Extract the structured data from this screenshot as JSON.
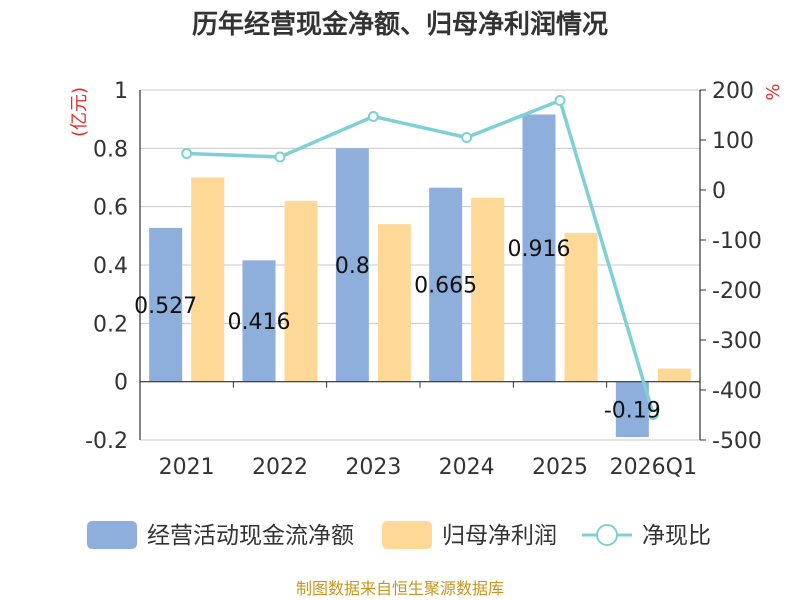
{
  "chart_data": {
    "type": "bar",
    "title": "历年经营现金净额、归母净利润情况",
    "categories": [
      "2021",
      "2022",
      "2023",
      "2024",
      "2025",
      "2026Q1"
    ],
    "left_axis": {
      "unit": "(亿元)",
      "ylim": [
        -0.2,
        1
      ],
      "ticks": [
        "1",
        "0.8",
        "0.6",
        "0.4",
        "0.2",
        "0",
        "-0.2"
      ],
      "tick_values": [
        1,
        0.8,
        0.6,
        0.4,
        0.2,
        0,
        -0.2
      ]
    },
    "right_axis": {
      "unit": "%",
      "ylim": [
        -500,
        200
      ],
      "ticks": [
        "200",
        "100",
        "0",
        "-100",
        "-200",
        "-300",
        "-400",
        "-500"
      ],
      "tick_values": [
        200,
        100,
        0,
        -100,
        -200,
        -300,
        -400,
        -500
      ]
    },
    "grid": true,
    "legend_position": "bottom",
    "series": [
      {
        "name": "经营活动现金流净额",
        "type": "bar",
        "axis": "left",
        "color": "#8eaedb",
        "values": [
          0.527,
          0.416,
          0.8,
          0.665,
          0.916,
          -0.19
        ],
        "labels": [
          "0.527",
          "0.416",
          "0.8",
          "0.665",
          "0.916",
          "-0.19"
        ]
      },
      {
        "name": "归母净利润",
        "type": "bar",
        "axis": "left",
        "color": "#fed897",
        "values": [
          0.7,
          0.62,
          0.54,
          0.63,
          0.51,
          0.045
        ]
      },
      {
        "name": "净现比",
        "type": "line",
        "axis": "right",
        "color": "#7ed0d6",
        "values": [
          73,
          66,
          147,
          105,
          179,
          -449
        ]
      }
    ]
  },
  "source_text": "制图数据来自恒生聚源数据库"
}
